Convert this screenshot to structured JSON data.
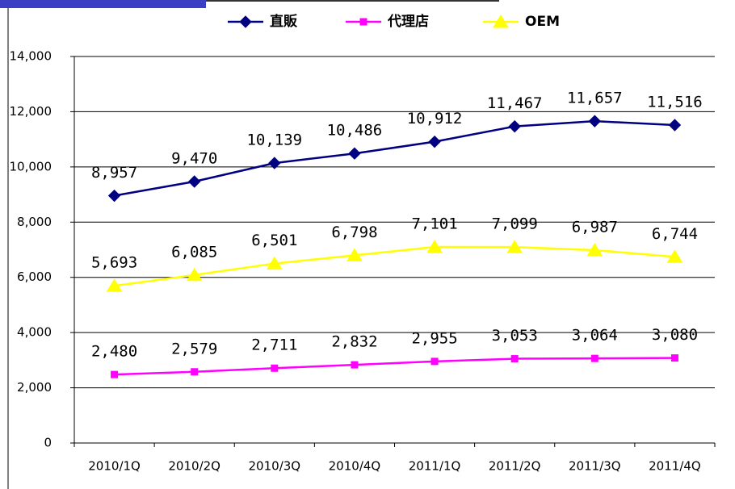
{
  "chart_data": {
    "type": "line",
    "categories": [
      "2010/1Q",
      "2010/2Q",
      "2010/3Q",
      "2010/4Q",
      "2011/1Q",
      "2011/2Q",
      "2011/3Q",
      "2011/4Q"
    ],
    "series": [
      {
        "name": "直販",
        "color": "#000080",
        "marker": "diamond",
        "values": [
          8957,
          9470,
          10139,
          10486,
          10912,
          11467,
          11657,
          11516
        ],
        "value_labels": [
          "8,957",
          "9,470",
          "10,139",
          "10,486",
          "10,912",
          "11,467",
          "11,657",
          "11,516"
        ]
      },
      {
        "name": "代理店",
        "color": "#ff00ff",
        "marker": "square",
        "values": [
          2480,
          2579,
          2711,
          2832,
          2955,
          3053,
          3064,
          3080
        ],
        "value_labels": [
          "2,480",
          "2,579",
          "2,711",
          "2,832",
          "2,955",
          "3,053",
          "3,064",
          "3,080"
        ]
      },
      {
        "name": "OEM",
        "color": "#ffff00",
        "marker": "triangle",
        "values": [
          5693,
          6085,
          6501,
          6798,
          7101,
          7099,
          6987,
          6744
        ],
        "value_labels": [
          "5,693",
          "6,085",
          "6,501",
          "6,798",
          "7,101",
          "7,099",
          "6,987",
          "6,744"
        ]
      }
    ],
    "ylim": [
      0,
      14000
    ],
    "yticks": [
      0,
      {
        "value": 2000,
        "label": "2,000"
      },
      {
        "value": 4000,
        "label": "4,000"
      },
      {
        "value": 6000,
        "label": "6,000"
      },
      {
        "value": 8000,
        "label": "8,000"
      },
      {
        "value": 10000,
        "label": "10,000"
      },
      {
        "value": 12000,
        "label": "12,000"
      },
      {
        "value": 14000,
        "label": "14,000"
      }
    ],
    "grid": true,
    "legend": "top"
  }
}
